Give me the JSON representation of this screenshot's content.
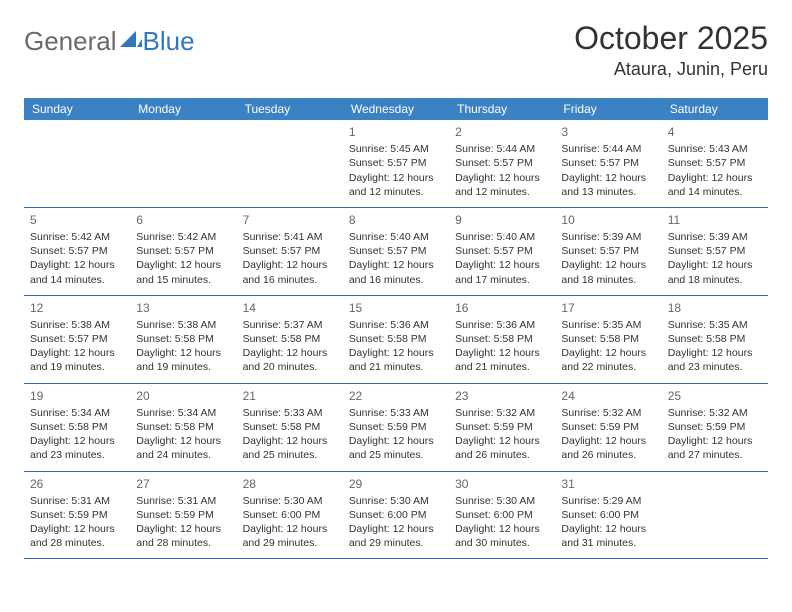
{
  "brand": {
    "word1": "General",
    "word2": "Blue",
    "color1": "#6a6a6a",
    "color2": "#2f78c0"
  },
  "title": "October 2025",
  "location": "Ataura, Junin, Peru",
  "header_bg": "#3b82c4",
  "header_fg": "#ffffff",
  "border_color": "#2e6ba8",
  "weekdays": [
    "Sunday",
    "Monday",
    "Tuesday",
    "Wednesday",
    "Thursday",
    "Friday",
    "Saturday"
  ],
  "weeks": [
    [
      null,
      null,
      null,
      {
        "d": "1",
        "sr": "Sunrise: 5:45 AM",
        "ss": "Sunset: 5:57 PM",
        "dl1": "Daylight: 12 hours",
        "dl2": "and 12 minutes."
      },
      {
        "d": "2",
        "sr": "Sunrise: 5:44 AM",
        "ss": "Sunset: 5:57 PM",
        "dl1": "Daylight: 12 hours",
        "dl2": "and 12 minutes."
      },
      {
        "d": "3",
        "sr": "Sunrise: 5:44 AM",
        "ss": "Sunset: 5:57 PM",
        "dl1": "Daylight: 12 hours",
        "dl2": "and 13 minutes."
      },
      {
        "d": "4",
        "sr": "Sunrise: 5:43 AM",
        "ss": "Sunset: 5:57 PM",
        "dl1": "Daylight: 12 hours",
        "dl2": "and 14 minutes."
      }
    ],
    [
      {
        "d": "5",
        "sr": "Sunrise: 5:42 AM",
        "ss": "Sunset: 5:57 PM",
        "dl1": "Daylight: 12 hours",
        "dl2": "and 14 minutes."
      },
      {
        "d": "6",
        "sr": "Sunrise: 5:42 AM",
        "ss": "Sunset: 5:57 PM",
        "dl1": "Daylight: 12 hours",
        "dl2": "and 15 minutes."
      },
      {
        "d": "7",
        "sr": "Sunrise: 5:41 AM",
        "ss": "Sunset: 5:57 PM",
        "dl1": "Daylight: 12 hours",
        "dl2": "and 16 minutes."
      },
      {
        "d": "8",
        "sr": "Sunrise: 5:40 AM",
        "ss": "Sunset: 5:57 PM",
        "dl1": "Daylight: 12 hours",
        "dl2": "and 16 minutes."
      },
      {
        "d": "9",
        "sr": "Sunrise: 5:40 AM",
        "ss": "Sunset: 5:57 PM",
        "dl1": "Daylight: 12 hours",
        "dl2": "and 17 minutes."
      },
      {
        "d": "10",
        "sr": "Sunrise: 5:39 AM",
        "ss": "Sunset: 5:57 PM",
        "dl1": "Daylight: 12 hours",
        "dl2": "and 18 minutes."
      },
      {
        "d": "11",
        "sr": "Sunrise: 5:39 AM",
        "ss": "Sunset: 5:57 PM",
        "dl1": "Daylight: 12 hours",
        "dl2": "and 18 minutes."
      }
    ],
    [
      {
        "d": "12",
        "sr": "Sunrise: 5:38 AM",
        "ss": "Sunset: 5:57 PM",
        "dl1": "Daylight: 12 hours",
        "dl2": "and 19 minutes."
      },
      {
        "d": "13",
        "sr": "Sunrise: 5:38 AM",
        "ss": "Sunset: 5:58 PM",
        "dl1": "Daylight: 12 hours",
        "dl2": "and 19 minutes."
      },
      {
        "d": "14",
        "sr": "Sunrise: 5:37 AM",
        "ss": "Sunset: 5:58 PM",
        "dl1": "Daylight: 12 hours",
        "dl2": "and 20 minutes."
      },
      {
        "d": "15",
        "sr": "Sunrise: 5:36 AM",
        "ss": "Sunset: 5:58 PM",
        "dl1": "Daylight: 12 hours",
        "dl2": "and 21 minutes."
      },
      {
        "d": "16",
        "sr": "Sunrise: 5:36 AM",
        "ss": "Sunset: 5:58 PM",
        "dl1": "Daylight: 12 hours",
        "dl2": "and 21 minutes."
      },
      {
        "d": "17",
        "sr": "Sunrise: 5:35 AM",
        "ss": "Sunset: 5:58 PM",
        "dl1": "Daylight: 12 hours",
        "dl2": "and 22 minutes."
      },
      {
        "d": "18",
        "sr": "Sunrise: 5:35 AM",
        "ss": "Sunset: 5:58 PM",
        "dl1": "Daylight: 12 hours",
        "dl2": "and 23 minutes."
      }
    ],
    [
      {
        "d": "19",
        "sr": "Sunrise: 5:34 AM",
        "ss": "Sunset: 5:58 PM",
        "dl1": "Daylight: 12 hours",
        "dl2": "and 23 minutes."
      },
      {
        "d": "20",
        "sr": "Sunrise: 5:34 AM",
        "ss": "Sunset: 5:58 PM",
        "dl1": "Daylight: 12 hours",
        "dl2": "and 24 minutes."
      },
      {
        "d": "21",
        "sr": "Sunrise: 5:33 AM",
        "ss": "Sunset: 5:58 PM",
        "dl1": "Daylight: 12 hours",
        "dl2": "and 25 minutes."
      },
      {
        "d": "22",
        "sr": "Sunrise: 5:33 AM",
        "ss": "Sunset: 5:59 PM",
        "dl1": "Daylight: 12 hours",
        "dl2": "and 25 minutes."
      },
      {
        "d": "23",
        "sr": "Sunrise: 5:32 AM",
        "ss": "Sunset: 5:59 PM",
        "dl1": "Daylight: 12 hours",
        "dl2": "and 26 minutes."
      },
      {
        "d": "24",
        "sr": "Sunrise: 5:32 AM",
        "ss": "Sunset: 5:59 PM",
        "dl1": "Daylight: 12 hours",
        "dl2": "and 26 minutes."
      },
      {
        "d": "25",
        "sr": "Sunrise: 5:32 AM",
        "ss": "Sunset: 5:59 PM",
        "dl1": "Daylight: 12 hours",
        "dl2": "and 27 minutes."
      }
    ],
    [
      {
        "d": "26",
        "sr": "Sunrise: 5:31 AM",
        "ss": "Sunset: 5:59 PM",
        "dl1": "Daylight: 12 hours",
        "dl2": "and 28 minutes."
      },
      {
        "d": "27",
        "sr": "Sunrise: 5:31 AM",
        "ss": "Sunset: 5:59 PM",
        "dl1": "Daylight: 12 hours",
        "dl2": "and 28 minutes."
      },
      {
        "d": "28",
        "sr": "Sunrise: 5:30 AM",
        "ss": "Sunset: 6:00 PM",
        "dl1": "Daylight: 12 hours",
        "dl2": "and 29 minutes."
      },
      {
        "d": "29",
        "sr": "Sunrise: 5:30 AM",
        "ss": "Sunset: 6:00 PM",
        "dl1": "Daylight: 12 hours",
        "dl2": "and 29 minutes."
      },
      {
        "d": "30",
        "sr": "Sunrise: 5:30 AM",
        "ss": "Sunset: 6:00 PM",
        "dl1": "Daylight: 12 hours",
        "dl2": "and 30 minutes."
      },
      {
        "d": "31",
        "sr": "Sunrise: 5:29 AM",
        "ss": "Sunset: 6:00 PM",
        "dl1": "Daylight: 12 hours",
        "dl2": "and 31 minutes."
      },
      null
    ]
  ]
}
